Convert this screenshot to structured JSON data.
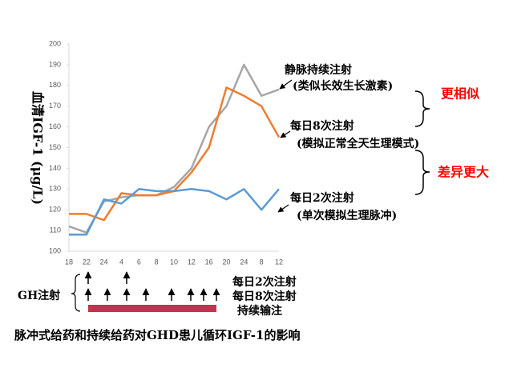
{
  "chart_data": {
    "type": "line",
    "title": "脉冲式给药和持续给药对GHD患儿循环IGF-1的影响",
    "ylabel": "血清IGF-1 (μg/L)",
    "categories": [
      "18",
      "22",
      "24",
      "4",
      "6",
      "8",
      "10",
      "12",
      "16",
      "20",
      "24",
      "8",
      "12"
    ],
    "series": [
      {
        "name": "静脉持续注射",
        "color": "#a6a6a6",
        "values": [
          112,
          109,
          124,
          126,
          127,
          127,
          131,
          140,
          160,
          170,
          190,
          175,
          178
        ]
      },
      {
        "name": "每日8次注射",
        "color": "#ed7d31",
        "values": [
          118,
          118,
          115,
          128,
          127,
          127,
          129,
          138,
          150,
          179,
          175,
          170,
          155
        ]
      },
      {
        "name": "每日2次注射",
        "color": "#5b9bd5",
        "values": [
          108,
          108,
          125,
          123,
          130,
          129,
          129,
          130,
          129,
          125,
          130,
          120,
          130
        ]
      }
    ],
    "series_notes": [
      "(类似长效生长激素)",
      "(模拟正常全天生理模式)",
      "(单次模拟生理脉冲)"
    ],
    "comparisons": [
      "更相似",
      "差异更大"
    ],
    "injection_label": "GH注射",
    "regimens": [
      "每日2次注射",
      "每日8次注射",
      "持续输注"
    ],
    "ylim": [
      100,
      200
    ],
    "yticks": [
      100,
      110,
      120,
      130,
      140,
      150,
      160,
      170,
      180,
      190,
      200
    ]
  }
}
